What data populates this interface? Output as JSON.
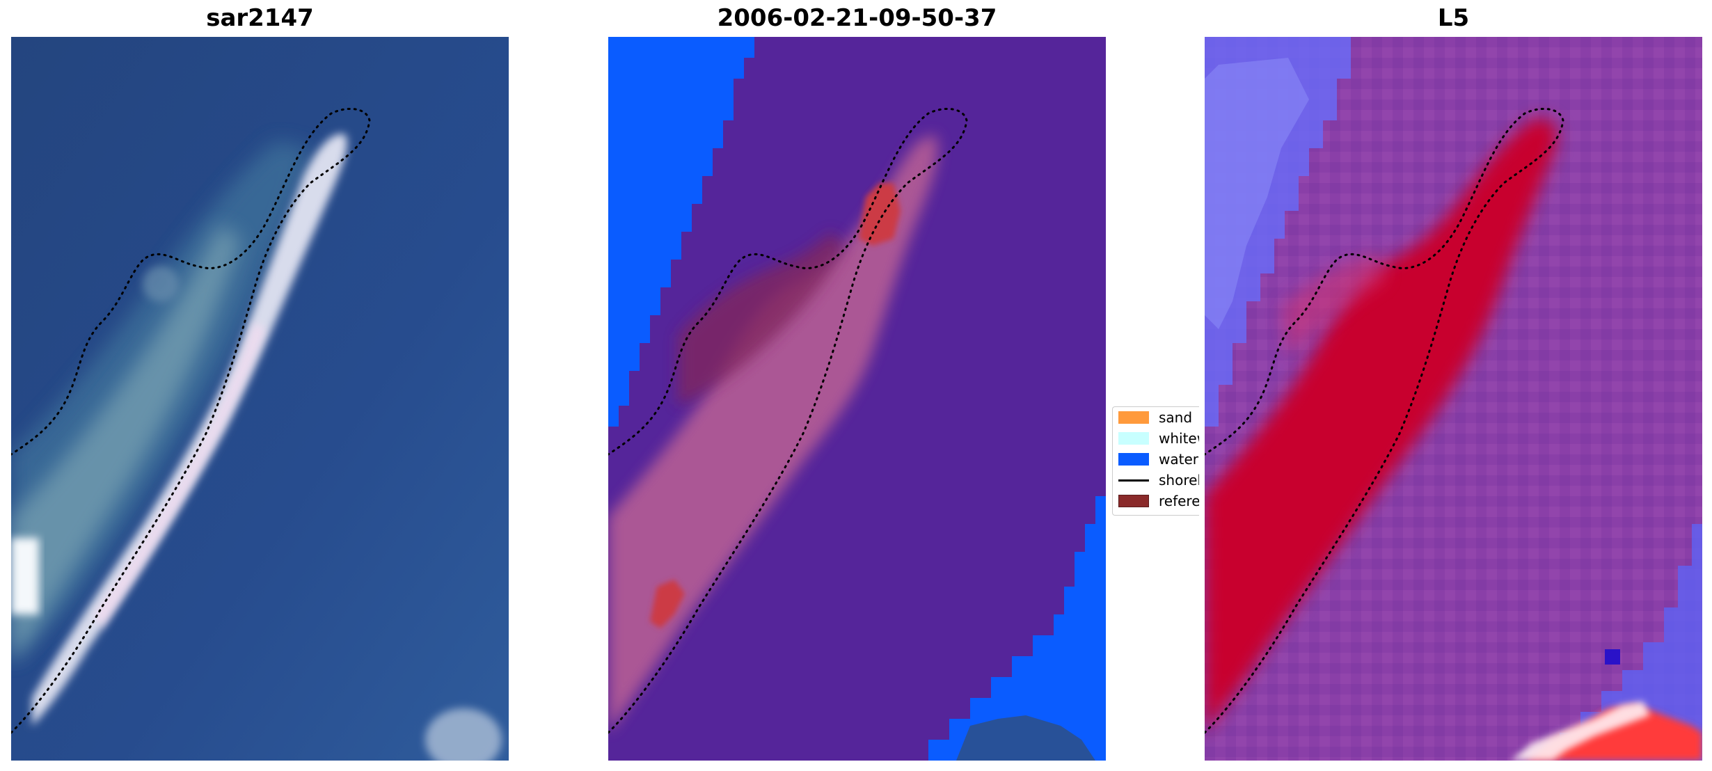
{
  "panels": [
    {
      "title": "sar2147"
    },
    {
      "title": "2006-02-21-09-50-37"
    },
    {
      "title": "L5"
    }
  ],
  "legend": {
    "items": [
      {
        "label": "sand",
        "color": "#ff9a3c"
      },
      {
        "label": "whitew",
        "color": "#c8ffff"
      },
      {
        "label": "water",
        "color": "#0a5cff"
      },
      {
        "label": "shorel",
        "color": "#000000"
      },
      {
        "label": "referen",
        "color": "#8a2a2a"
      }
    ]
  },
  "colors": {
    "sea_rgb": "#2a4a8c",
    "class_background": "#55259a",
    "water": "#0a5cff",
    "index_sand": "#c8002e",
    "index_water_low": "#5a5aff"
  }
}
